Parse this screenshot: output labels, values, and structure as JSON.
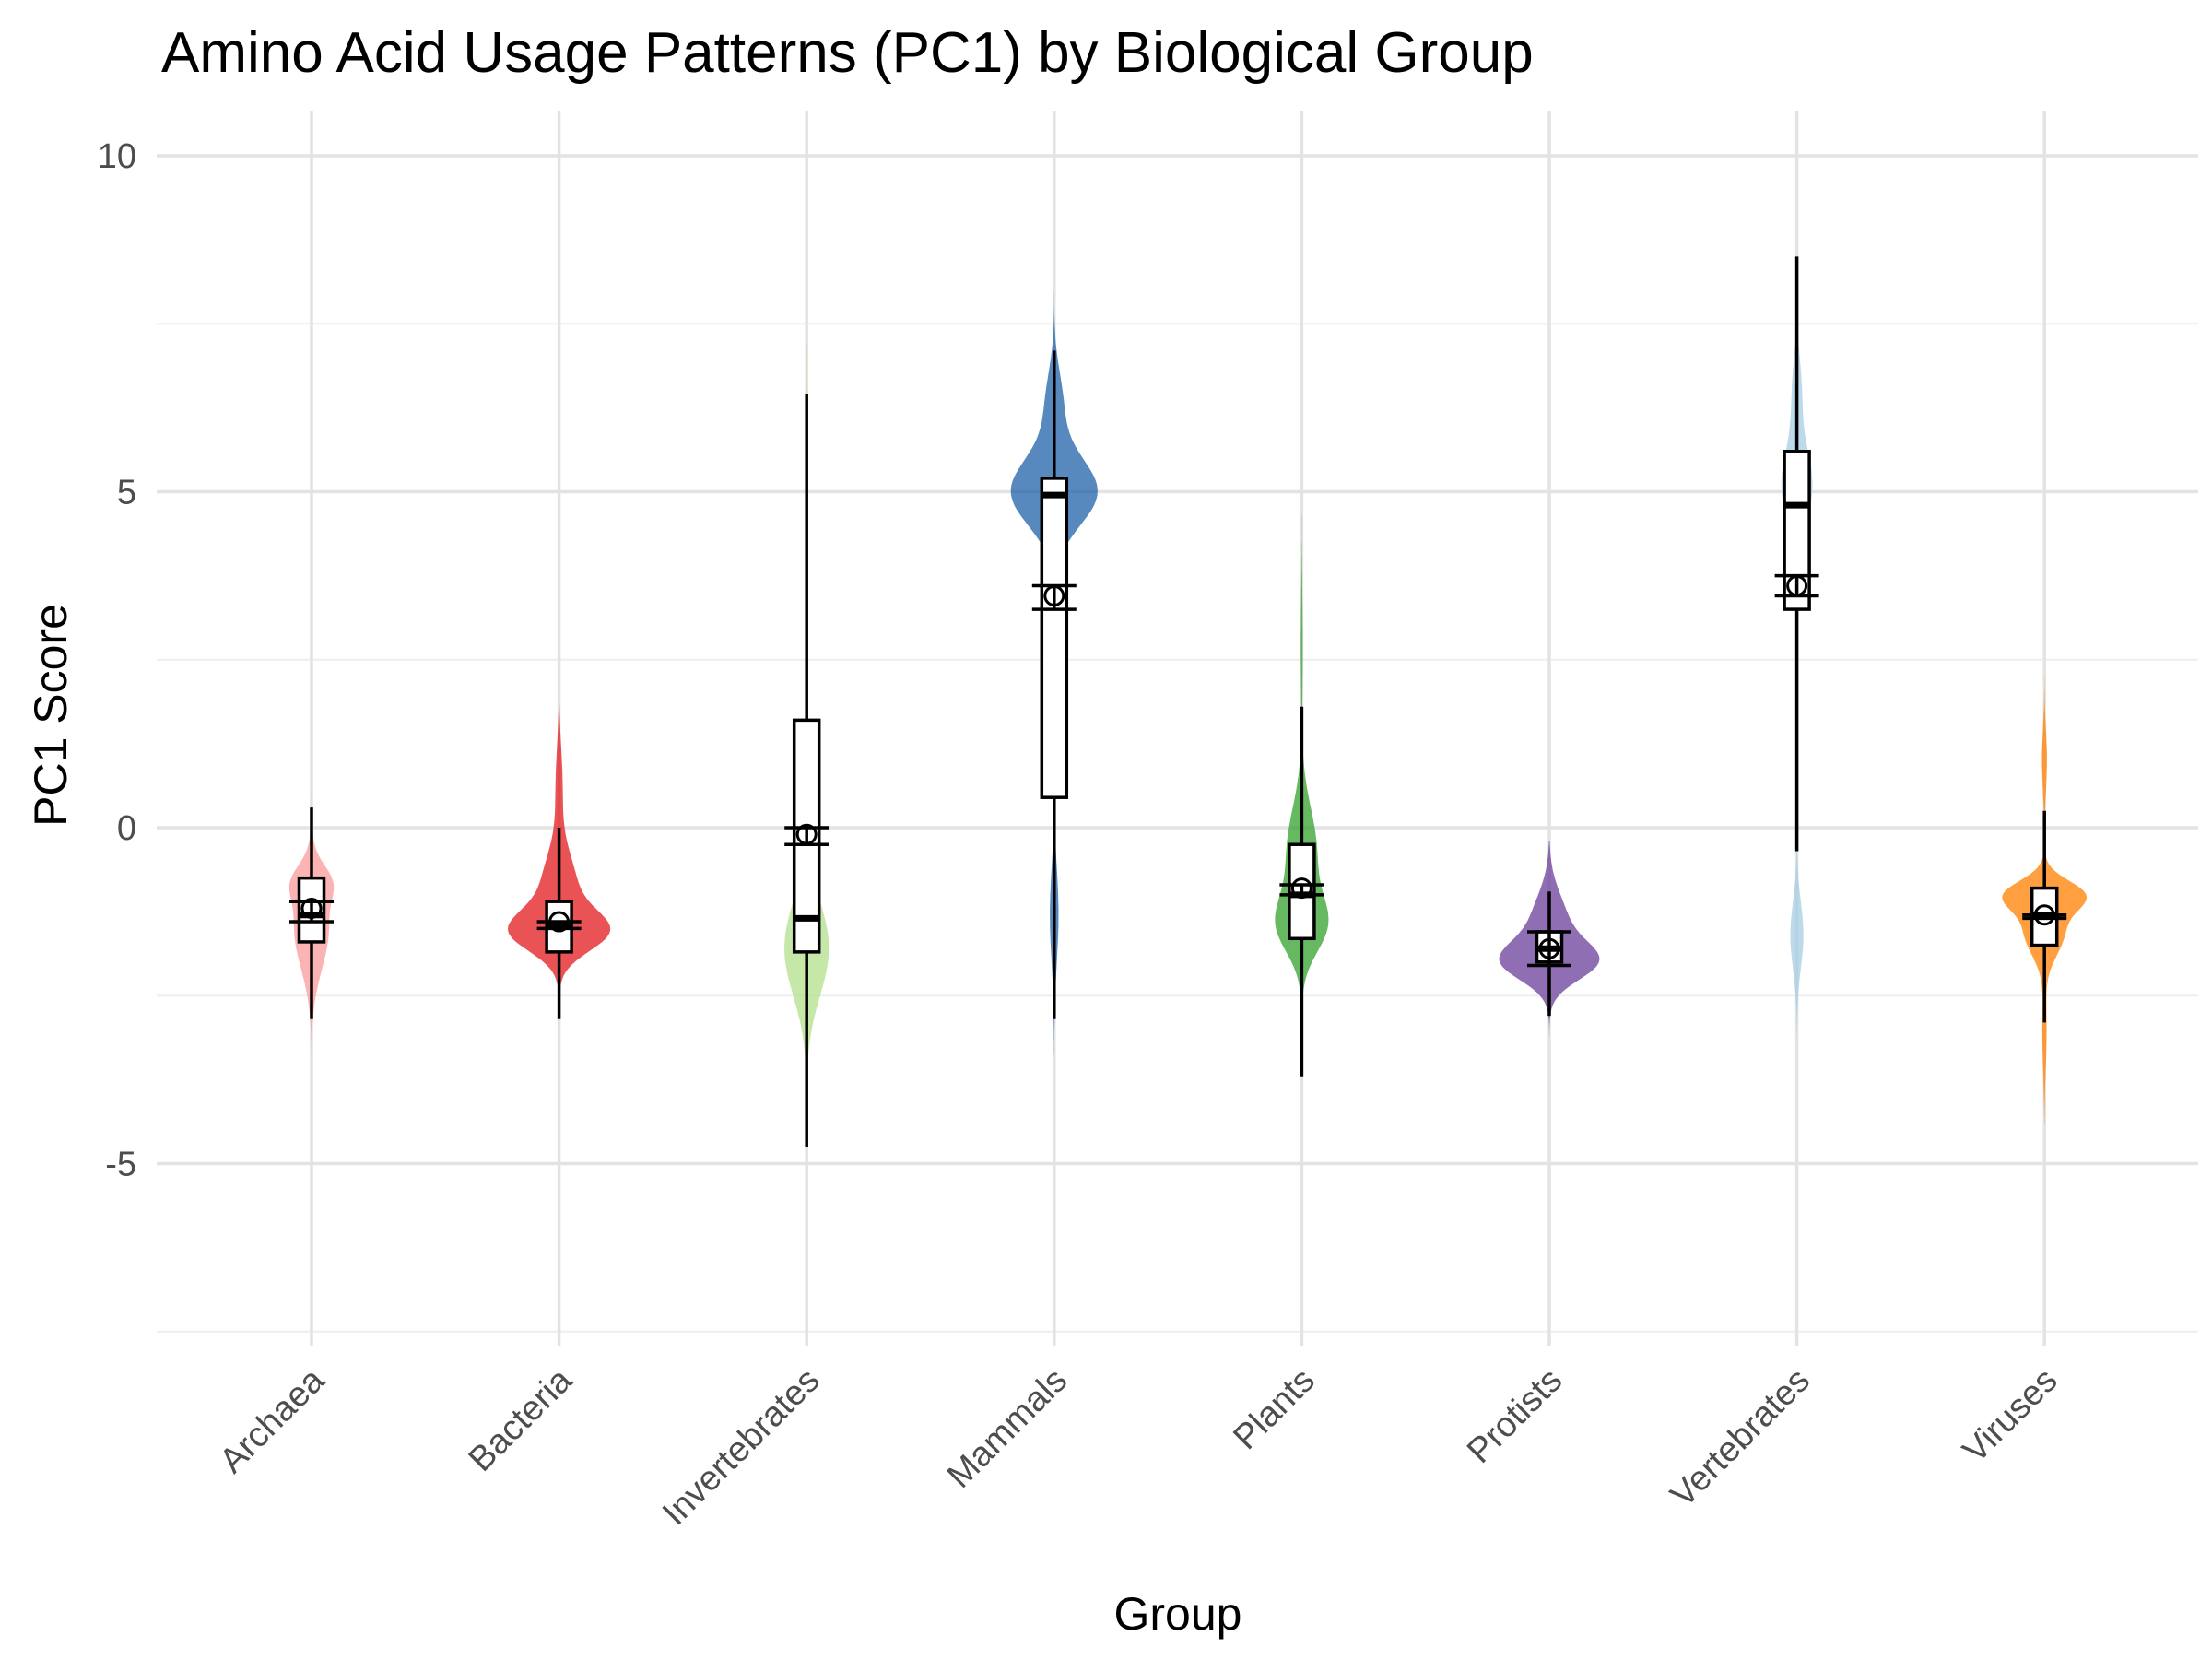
{
  "chart_data": {
    "type": "violin",
    "title": "Amino Acid Usage Patterns (PC1) by Biological Group",
    "xlabel": "Group",
    "ylabel": "PC1 Score",
    "ylim": [
      -7.5,
      10.5
    ],
    "yticks": [
      -5,
      0,
      5,
      10
    ],
    "yminor": [
      -7.5,
      -2.5,
      2.5,
      7.5
    ],
    "grid": true,
    "legend": "none",
    "categories": [
      "Archaea",
      "Bacteria",
      "Invertebrates",
      "Mammals",
      "Plants",
      "Protists",
      "Vertebrates",
      "Viruses"
    ],
    "series": [
      {
        "category": "Archaea",
        "color": "#fb9a99",
        "range": [
          -3.4,
          0.8
        ],
        "width": 0.2,
        "modes": [
          [
            -1.5,
            0.6,
            0.95
          ],
          [
            -0.8,
            0.25,
            0.7
          ]
        ],
        "box": {
          "q1": -1.7,
          "median": -1.3,
          "q3": -0.75,
          "whisker_low": -2.85,
          "whisker_high": 0.3
        },
        "mean": -1.2,
        "ci": [
          -1.4,
          -1.1
        ]
      },
      {
        "category": "Bacteria",
        "color": "#e31a1c",
        "range": [
          -3.6,
          2.5
        ],
        "width": 0.46,
        "modes": [
          [
            -1.55,
            0.3,
            1.0
          ],
          [
            -0.9,
            0.5,
            0.4
          ],
          [
            0.6,
            0.6,
            0.08
          ]
        ],
        "box": {
          "q1": -1.85,
          "median": -1.45,
          "q3": -1.1,
          "whisker_low": -2.85,
          "whisker_high": 0.0
        },
        "mean": -1.4,
        "ci": [
          -1.5,
          -1.4
        ]
      },
      {
        "category": "Invertebrates",
        "color": "#b2df8a",
        "range": [
          -4.8,
          7.2
        ],
        "width": 0.2,
        "modes": [
          [
            -1.8,
            0.7,
            1.0
          ],
          [
            3.5,
            2.0,
            0.07
          ]
        ],
        "box": {
          "q1": -1.85,
          "median": -1.35,
          "q3": 1.6,
          "whisker_low": -4.75,
          "whisker_high": 6.45
        },
        "mean": -0.1,
        "ci": [
          -0.25,
          0.0
        ]
      },
      {
        "category": "Mammals",
        "color": "#1f62a8",
        "range": [
          -4.2,
          8.3
        ],
        "width": 0.39,
        "modes": [
          [
            5.0,
            0.5,
            1.0
          ],
          [
            6.3,
            0.5,
            0.2
          ],
          [
            -1.3,
            0.7,
            0.1
          ]
        ],
        "box": {
          "q1": 0.45,
          "median": 4.95,
          "q3": 5.2,
          "whisker_low": -2.85,
          "whisker_high": 7.1
        },
        "mean": 3.45,
        "ci": [
          3.25,
          3.6
        ]
      },
      {
        "category": "Plants",
        "color": "#33a02c",
        "range": [
          -3.6,
          4.8
        ],
        "width": 0.24,
        "modes": [
          [
            -1.45,
            0.42,
            1.0
          ],
          [
            -0.35,
            0.65,
            0.65
          ],
          [
            2.7,
            0.8,
            0.04
          ]
        ],
        "box": {
          "q1": -1.65,
          "median": -1.0,
          "q3": -0.25,
          "whisker_low": -3.7,
          "whisker_high": 1.8
        },
        "mean": -0.9,
        "ci": [
          -1.0,
          -0.85
        ]
      },
      {
        "category": "Protists",
        "color": "#6a3d9a",
        "range": [
          -3.4,
          -0.2
        ],
        "width": 0.45,
        "modes": [
          [
            -2.0,
            0.28,
            1.0
          ],
          [
            -1.45,
            0.45,
            0.45
          ]
        ],
        "box": {
          "q1": -2.0,
          "median": -1.8,
          "q3": -1.55,
          "whisker_low": -2.8,
          "whisker_high": -0.95
        },
        "mean": -1.8,
        "ci": [
          -2.05,
          -1.55
        ]
      },
      {
        "category": "Vertebrates",
        "color": "#a6cee3",
        "range": [
          -4.0,
          8.0
        ],
        "width": 0.14,
        "modes": [
          [
            5.1,
            0.55,
            1.0
          ],
          [
            6.5,
            0.5,
            0.3
          ],
          [
            3.8,
            0.35,
            0.3
          ],
          [
            -1.6,
            0.5,
            0.42
          ]
        ],
        "box": {
          "q1": 3.25,
          "median": 4.8,
          "q3": 5.6,
          "whisker_low": -0.35,
          "whisker_high": 8.5
        },
        "mean": 3.6,
        "ci": [
          3.45,
          3.75
        ]
      },
      {
        "category": "Viruses",
        "color": "#ff7f00",
        "range": [
          -4.4,
          3.2
        ],
        "width": 0.38,
        "modes": [
          [
            -1.0,
            0.22,
            1.0
          ],
          [
            -1.55,
            0.35,
            0.55
          ],
          [
            1.0,
            0.45,
            0.07
          ],
          [
            -3.0,
            0.6,
            0.06
          ]
        ],
        "box": {
          "q1": -1.75,
          "median": -1.3,
          "q3": -0.9,
          "whisker_low": -2.9,
          "whisker_high": 0.25
        },
        "mean": -1.3,
        "ci": [
          -1.35,
          -1.3
        ]
      }
    ]
  }
}
